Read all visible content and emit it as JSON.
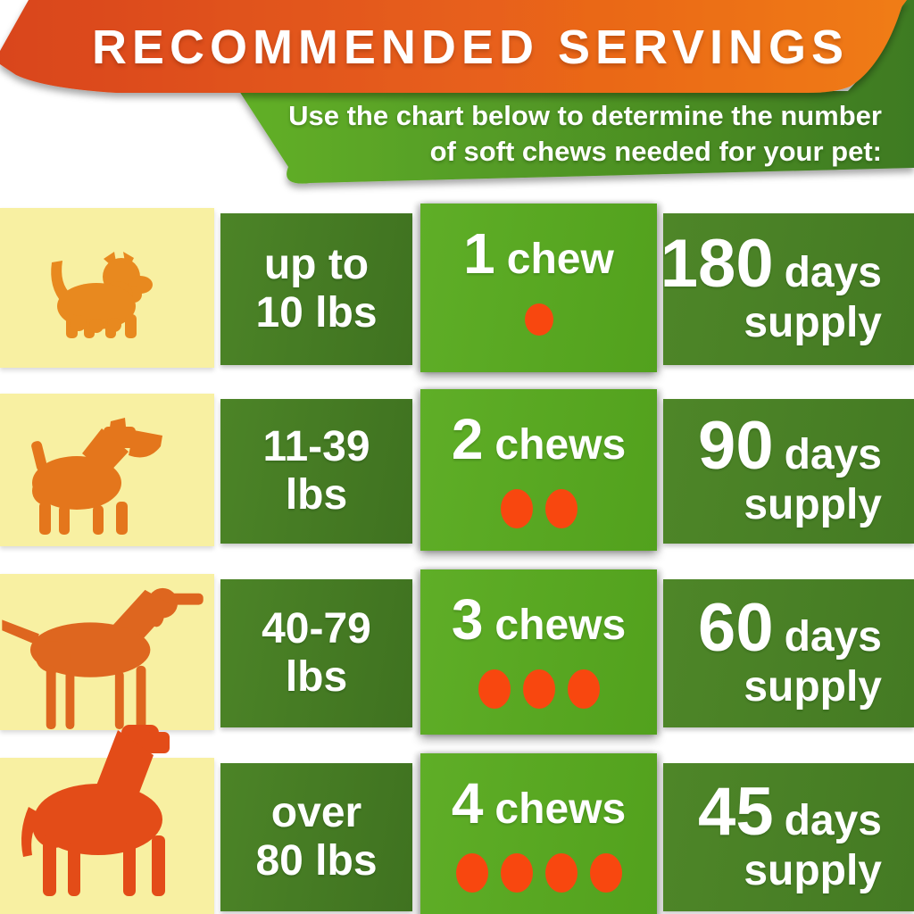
{
  "header": {
    "title": "RECOMMENDED SERVINGS",
    "subtitle_line1": "Use the chart below to determine the number",
    "subtitle_line2": "of soft chews needed for your pet:"
  },
  "colors": {
    "banner_orange_left": "#D9451C",
    "banner_orange_right": "#F07C15",
    "banner_green_left": "#62B028",
    "banner_green_right": "#3E7A21",
    "cell_dark_green_left": "#4C8427",
    "cell_dark_green_right": "#3F7220",
    "cell_bright_green_left": "#5FAE27",
    "cell_bright_green_right": "#52A11D",
    "cell_yellow": "#F8F0A2",
    "chew_dot": "#F8470F",
    "dog_row1": "#E8891F",
    "dog_row2": "#E4761C",
    "dog_row3": "#DE661F",
    "dog_row4": "#E34C18",
    "text": "#FFFFFF"
  },
  "chart_data": {
    "type": "table",
    "title": "RECOMMENDED SERVINGS",
    "subtitle": "Use the chart below to determine the number of soft chews needed for your pet:",
    "columns": [
      "dog size (icon)",
      "pet weight",
      "chews per serving",
      "supply duration"
    ],
    "rows": [
      {
        "dog": "small terrier dog silhouette",
        "weight_line1": "up to",
        "weight_line2": "10 lbs",
        "chew_num": "1",
        "chew_word": "chew",
        "chew_count": 1,
        "supply_num": "180",
        "supply_word": "days",
        "supply_line2": "supply"
      },
      {
        "dog": "medium terrier dog silhouette",
        "weight_line1": "11-39",
        "weight_line2": "lbs",
        "chew_num": "2",
        "chew_word": "chews",
        "chew_count": 2,
        "supply_num": "90",
        "supply_word": "days",
        "supply_line2": "supply"
      },
      {
        "dog": "pointer dog silhouette",
        "weight_line1": "40-79",
        "weight_line2": "lbs",
        "chew_num": "3",
        "chew_word": "chews",
        "chew_count": 3,
        "supply_num": "60",
        "supply_word": "days",
        "supply_line2": "supply"
      },
      {
        "dog": "great dane dog silhouette",
        "weight_line1": "over",
        "weight_line2": "80 lbs",
        "chew_num": "4",
        "chew_word": "chews",
        "chew_count": 4,
        "supply_num": "45",
        "supply_word": "days",
        "supply_line2": "supply"
      }
    ]
  }
}
